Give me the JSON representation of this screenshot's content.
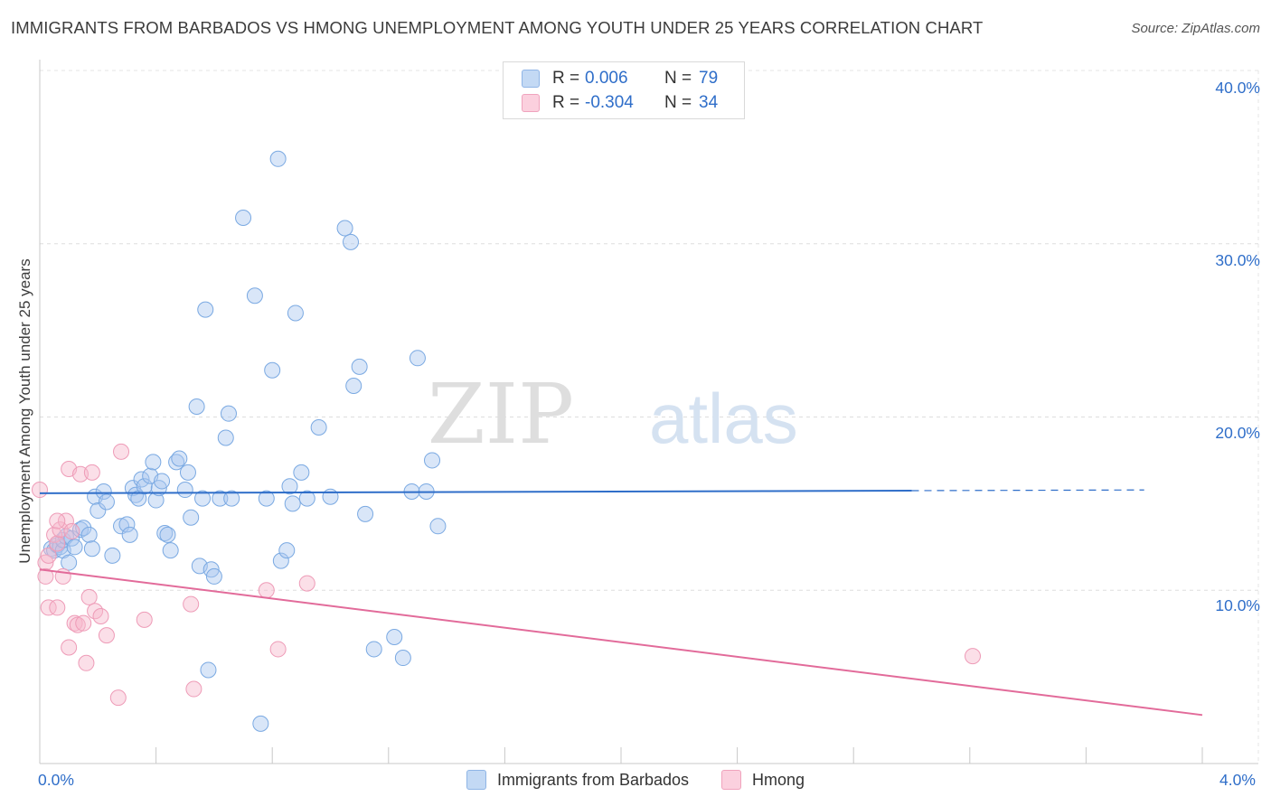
{
  "title": "IMMIGRANTS FROM BARBADOS VS HMONG UNEMPLOYMENT AMONG YOUTH UNDER 25 YEARS CORRELATION CHART",
  "source": "Source: ZipAtlas.com",
  "watermark": {
    "zip": "ZIP",
    "atlas": "atlas"
  },
  "legend": {
    "rows": [
      {
        "r_label": "R =",
        "r_value": "0.006",
        "n_label": "N =",
        "n_value": "79",
        "color": "#a8c8ef"
      },
      {
        "r_label": "R =",
        "r_value": "-0.304",
        "n_label": "N =",
        "n_value": "34",
        "color": "#f7b9cd"
      }
    ]
  },
  "chart_data": {
    "type": "scatter",
    "title": "IMMIGRANTS FROM BARBADOS VS HMONG UNEMPLOYMENT AMONG YOUTH UNDER 25 YEARS CORRELATION CHART",
    "xlabel": "",
    "ylabel": "Unemployment Among Youth under 25 years",
    "xlim": [
      0,
      4.0
    ],
    "ylim": [
      0,
      40.0
    ],
    "x_tick_labels": [
      "0.0%",
      "4.0%"
    ],
    "y_ticks": [
      10,
      20,
      30,
      40
    ],
    "y_tick_labels": [
      "10.0%",
      "20.0%",
      "30.0%",
      "40.0%"
    ],
    "grid": true,
    "legend_position": "top-center",
    "series": [
      {
        "name": "Immigrants from Barbados",
        "color": "#6fa3e0",
        "trend": {
          "x": [
            0.0,
            3.0
          ],
          "y": [
            15.6,
            15.75
          ],
          "dashed_to_x": 3.8
        },
        "points": [
          [
            0.04,
            12.4
          ],
          [
            0.05,
            12.3
          ],
          [
            0.06,
            12.6
          ],
          [
            0.07,
            12.5
          ],
          [
            0.08,
            12.3
          ],
          [
            0.08,
            12.9
          ],
          [
            0.09,
            13.1
          ],
          [
            0.1,
            11.6
          ],
          [
            0.11,
            13.0
          ],
          [
            0.12,
            12.5
          ],
          [
            0.14,
            13.5
          ],
          [
            0.15,
            13.6
          ],
          [
            0.17,
            13.2
          ],
          [
            0.18,
            12.4
          ],
          [
            0.19,
            15.4
          ],
          [
            0.2,
            14.6
          ],
          [
            0.22,
            15.7
          ],
          [
            0.23,
            15.1
          ],
          [
            0.25,
            12.0
          ],
          [
            0.28,
            13.7
          ],
          [
            0.3,
            13.8
          ],
          [
            0.31,
            13.2
          ],
          [
            0.32,
            15.9
          ],
          [
            0.33,
            15.5
          ],
          [
            0.34,
            15.3
          ],
          [
            0.35,
            16.4
          ],
          [
            0.36,
            16.0
          ],
          [
            0.38,
            16.6
          ],
          [
            0.39,
            17.4
          ],
          [
            0.4,
            15.2
          ],
          [
            0.41,
            15.9
          ],
          [
            0.42,
            16.3
          ],
          [
            0.43,
            13.3
          ],
          [
            0.44,
            13.2
          ],
          [
            0.45,
            12.3
          ],
          [
            0.47,
            17.4
          ],
          [
            0.48,
            17.6
          ],
          [
            0.5,
            15.8
          ],
          [
            0.51,
            16.8
          ],
          [
            0.52,
            14.2
          ],
          [
            0.54,
            20.6
          ],
          [
            0.55,
            11.4
          ],
          [
            0.56,
            15.3
          ],
          [
            0.57,
            26.2
          ],
          [
            0.58,
            5.4
          ],
          [
            0.59,
            11.2
          ],
          [
            0.6,
            10.8
          ],
          [
            0.62,
            15.3
          ],
          [
            0.64,
            18.8
          ],
          [
            0.65,
            20.2
          ],
          [
            0.66,
            15.3
          ],
          [
            0.7,
            31.5
          ],
          [
            0.74,
            27.0
          ],
          [
            0.76,
            2.3
          ],
          [
            0.78,
            15.3
          ],
          [
            0.8,
            22.7
          ],
          [
            0.82,
            34.9
          ],
          [
            0.83,
            11.7
          ],
          [
            0.85,
            12.3
          ],
          [
            0.86,
            16.0
          ],
          [
            0.87,
            15.0
          ],
          [
            0.88,
            26.0
          ],
          [
            0.9,
            16.8
          ],
          [
            0.92,
            15.3
          ],
          [
            0.96,
            19.4
          ],
          [
            1.0,
            15.4
          ],
          [
            1.05,
            30.9
          ],
          [
            1.07,
            30.1
          ],
          [
            1.08,
            21.8
          ],
          [
            1.1,
            22.9
          ],
          [
            1.12,
            14.4
          ],
          [
            1.15,
            6.6
          ],
          [
            1.22,
            7.3
          ],
          [
            1.25,
            6.1
          ],
          [
            1.28,
            15.7
          ],
          [
            1.3,
            23.4
          ],
          [
            1.33,
            15.7
          ],
          [
            1.35,
            17.5
          ],
          [
            1.37,
            13.7
          ]
        ]
      },
      {
        "name": "Hmong",
        "color": "#ef87a8",
        "trend": {
          "x": [
            0.0,
            4.0
          ],
          "y": [
            11.2,
            2.8
          ]
        },
        "points": [
          [
            0.0,
            15.8
          ],
          [
            0.02,
            11.6
          ],
          [
            0.02,
            10.8
          ],
          [
            0.03,
            12.0
          ],
          [
            0.03,
            9.0
          ],
          [
            0.05,
            13.2
          ],
          [
            0.06,
            12.7
          ],
          [
            0.06,
            9.0
          ],
          [
            0.07,
            13.5
          ],
          [
            0.08,
            10.8
          ],
          [
            0.09,
            14.0
          ],
          [
            0.1,
            17.0
          ],
          [
            0.1,
            6.7
          ],
          [
            0.11,
            13.4
          ],
          [
            0.12,
            8.1
          ],
          [
            0.13,
            8.0
          ],
          [
            0.14,
            16.7
          ],
          [
            0.15,
            8.1
          ],
          [
            0.16,
            5.8
          ],
          [
            0.17,
            9.6
          ],
          [
            0.18,
            16.8
          ],
          [
            0.19,
            8.8
          ],
          [
            0.21,
            8.5
          ],
          [
            0.23,
            7.4
          ],
          [
            0.27,
            3.8
          ],
          [
            0.28,
            18.0
          ],
          [
            0.36,
            8.3
          ],
          [
            0.52,
            9.2
          ],
          [
            0.53,
            4.3
          ],
          [
            0.78,
            10.0
          ],
          [
            0.82,
            6.6
          ],
          [
            0.92,
            10.4
          ],
          [
            3.21,
            6.2
          ],
          [
            0.06,
            14.0
          ]
        ]
      }
    ]
  }
}
